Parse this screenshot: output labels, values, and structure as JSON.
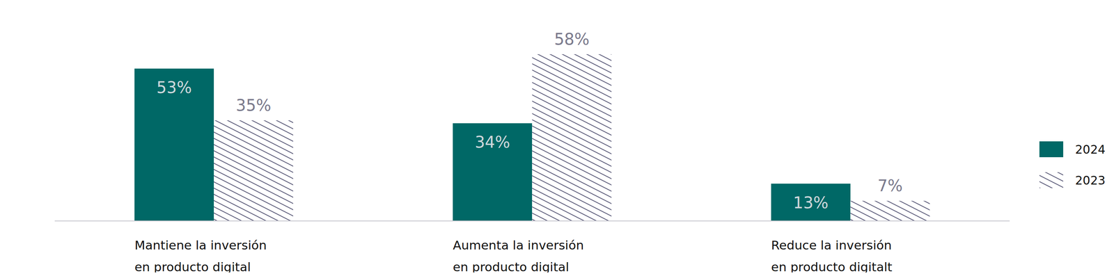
{
  "chart_data": {
    "type": "bar",
    "categories": [
      "Mantiene la inversión en producto digital",
      "Aumenta la inversión en producto digital",
      "Reduce la inversión en producto digitalt"
    ],
    "series": [
      {
        "name": "2024",
        "color": "#006866",
        "values": [
          53,
          34,
          13
        ],
        "value_labels": [
          "53%",
          "34%",
          "13%"
        ]
      },
      {
        "name": "2023",
        "color": "#5c5c7a",
        "values": [
          35,
          58,
          7
        ],
        "value_labels": [
          "35%",
          "58%",
          "7%"
        ]
      }
    ],
    "data_labels": true,
    "legend": "right",
    "tick_labels": "x"
  }
}
